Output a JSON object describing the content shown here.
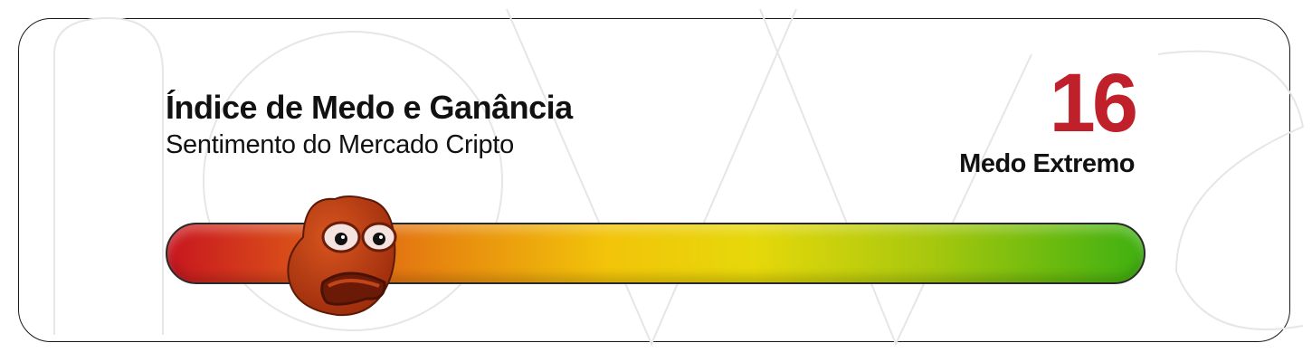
{
  "header": {
    "title": "Índice de Medo e Ganância",
    "subtitle": "Sentimento do Mercado Cripto"
  },
  "index": {
    "value": "16",
    "label": "Medo Extremo",
    "value_color": "#c0202a"
  },
  "gauge": {
    "level": 16,
    "min": 0,
    "max": 100,
    "colors": [
      "#c8161f",
      "#e7870f",
      "#f2c40a",
      "#3fb010"
    ],
    "indicator_icon": "scared-frog-icon"
  }
}
